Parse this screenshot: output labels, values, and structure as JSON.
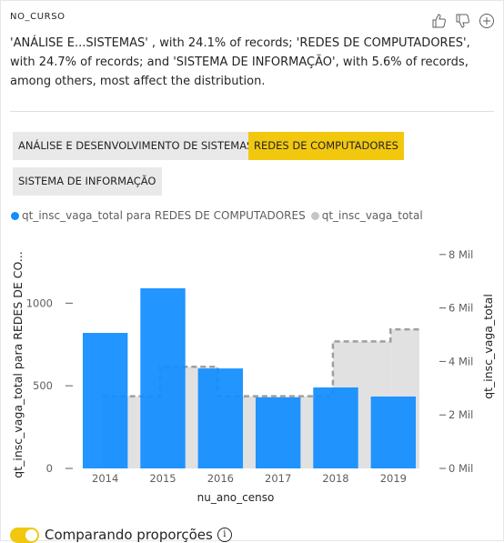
{
  "field_name": "NO_CURSO",
  "summary": "'ANÁLISE E...SISTEMAS' , with 24.1% of records; 'REDES DE COMPUTADORES', with 24.7% of records; and 'SISTEMA DE INFORMAÇÃO', with 5.6% of records, among others, most affect the distribution.",
  "header_icons": [
    "thumbs-up-icon",
    "thumbs-down-icon",
    "plus-icon"
  ],
  "chips": [
    {
      "label": "ANÁLISE E DESENVOLVIMENTO DE SISTEMAS",
      "active": false
    },
    {
      "label": "REDES DE COMPUTADORES",
      "active": true
    },
    {
      "label": "SISTEMA DE INFORMAÇÃO",
      "active": false
    }
  ],
  "footer": {
    "toggle_label": "Comparando proporções",
    "toggle_on": true
  },
  "colors": {
    "primary": "#118dff",
    "comparison": "#c8c6c4",
    "accent": "#f2c80f"
  },
  "chart_data": {
    "type": "bar",
    "categories": [
      "2014",
      "2015",
      "2016",
      "2017",
      "2018",
      "2019"
    ],
    "xlabel": "nu_ano_censo",
    "ylabel_left": "qt_insc_vaga_total para REDES DE CO...",
    "ylabel_right": "qt_insc_vaga_total",
    "legend_position": "top-left",
    "series": [
      {
        "name": "qt_insc_vaga_total para REDES DE COMPUTADORES",
        "axis": "left",
        "color": "#118dff",
        "values": [
          820,
          1090,
          605,
          430,
          490,
          435
        ]
      },
      {
        "name": "qt_insc_vaga_total",
        "axis": "right",
        "color": "#c8c6c4",
        "values": [
          2700,
          3800,
          2700,
          2700,
          4750,
          5200
        ]
      }
    ],
    "left_axis": {
      "ticks": [
        0,
        500,
        1000
      ],
      "tick_labels": [
        "0",
        "500",
        "1000"
      ],
      "ylim": [
        0,
        1420
      ]
    },
    "right_axis": {
      "ticks": [
        0,
        2000,
        4000,
        6000,
        8000
      ],
      "tick_labels": [
        "0 Mil",
        "2 Mil",
        "4 Mil",
        "6 Mil",
        "8 Mil"
      ],
      "ylim": [
        0,
        8300
      ]
    },
    "grid": false
  }
}
